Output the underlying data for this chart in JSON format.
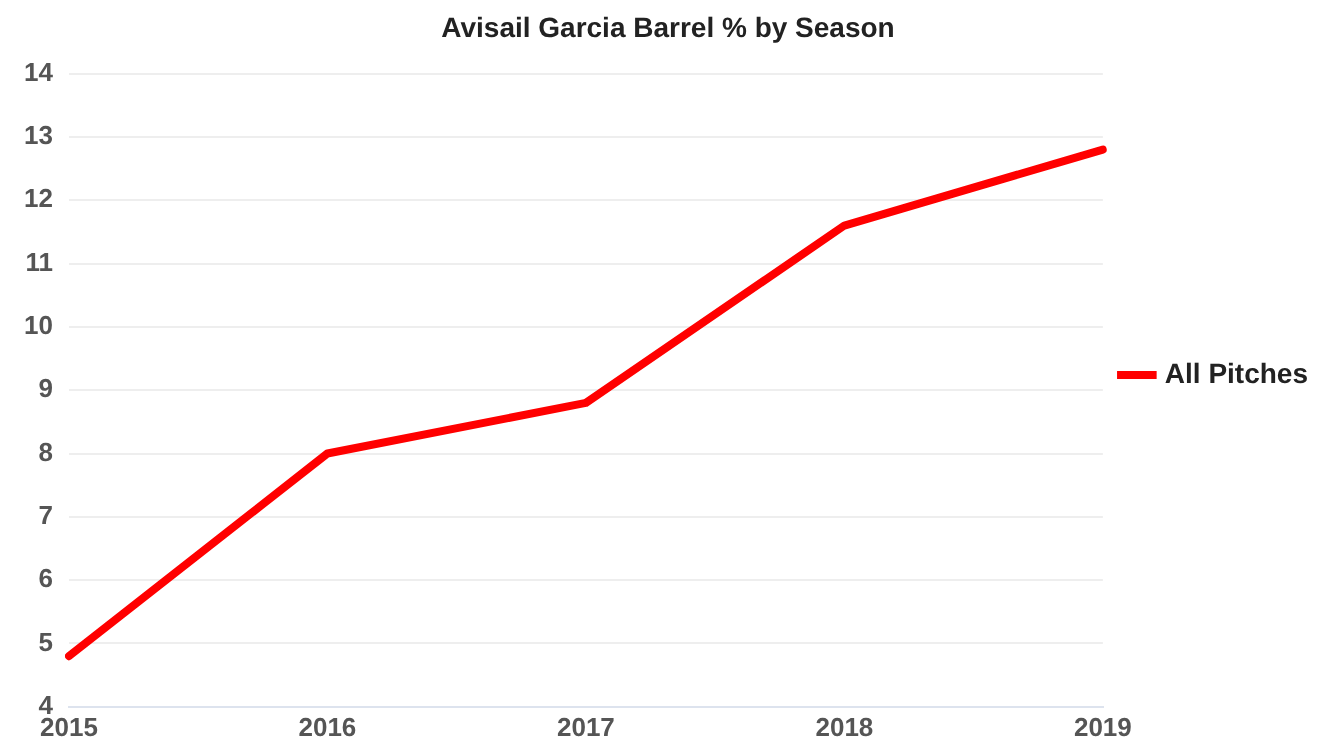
{
  "chart_data": {
    "type": "line",
    "title": "Avisail Garcia Barrel % by Season",
    "categories": [
      "2015",
      "2016",
      "2017",
      "2018",
      "2019"
    ],
    "series": [
      {
        "name": "All Pitches",
        "color": "#ff0000",
        "values": [
          4.8,
          8.0,
          8.8,
          11.6,
          12.8
        ]
      }
    ],
    "ylim": [
      4,
      14
    ],
    "yticks": [
      4,
      5,
      6,
      7,
      8,
      9,
      10,
      11,
      12,
      13,
      14
    ],
    "grid": "y",
    "legend": "right",
    "marker": "none",
    "line_style": "solid"
  }
}
